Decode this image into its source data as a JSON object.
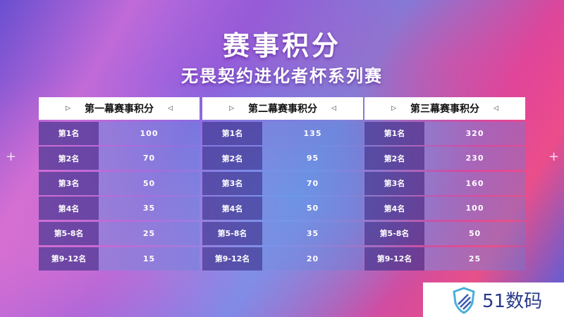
{
  "title": "赛事积分",
  "subtitle": "无畏契约进化者杯系列赛",
  "tables": [
    {
      "header": "第一幕赛事积分",
      "rows": [
        {
          "rank": "第1名",
          "points": "100"
        },
        {
          "rank": "第2名",
          "points": "70"
        },
        {
          "rank": "第3名",
          "points": "50"
        },
        {
          "rank": "第4名",
          "points": "35"
        },
        {
          "rank": "第5-8名",
          "points": "25"
        },
        {
          "rank": "第9-12名",
          "points": "15"
        }
      ]
    },
    {
      "header": "第二幕赛事积分",
      "rows": [
        {
          "rank": "第1名",
          "points": "135"
        },
        {
          "rank": "第2名",
          "points": "95"
        },
        {
          "rank": "第3名",
          "points": "70"
        },
        {
          "rank": "第4名",
          "points": "50"
        },
        {
          "rank": "第5-8名",
          "points": "35"
        },
        {
          "rank": "第9-12名",
          "points": "20"
        }
      ]
    },
    {
      "header": "第三幕赛事积分",
      "rows": [
        {
          "rank": "第1名",
          "points": "320"
        },
        {
          "rank": "第2名",
          "points": "230"
        },
        {
          "rank": "第3名",
          "points": "160"
        },
        {
          "rank": "第4名",
          "points": "100"
        },
        {
          "rank": "第5-8名",
          "points": "50"
        },
        {
          "rank": "第9-12名",
          "points": "25"
        }
      ]
    }
  ],
  "watermark": "51数码",
  "icons": {
    "header_left": "triangle-right-icon",
    "header_right": "triangle-left-icon",
    "logo": "shield-logo-icon"
  }
}
